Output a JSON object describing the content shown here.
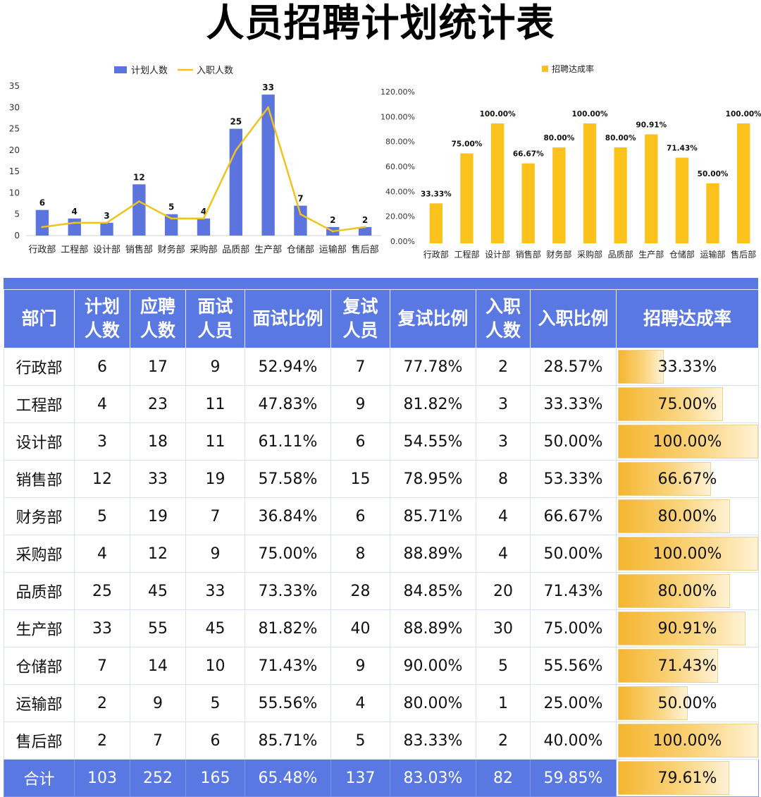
{
  "title": "人员招聘计划统计表",
  "colors": {
    "blue": "#5a78e2",
    "plan_bar": "#5b74de",
    "line": "#f0c31d",
    "rate_bar": "#fbc21c"
  },
  "chart_data": [
    {
      "type": "bar",
      "categories": [
        "行政部",
        "工程部",
        "设计部",
        "销售部",
        "财务部",
        "采购部",
        "品质部",
        "生产部",
        "仓储部",
        "运输部",
        "售后部"
      ],
      "series": [
        {
          "name": "计划人数",
          "type": "bar",
          "axis": "left",
          "values": [
            6,
            4,
            3,
            12,
            5,
            4,
            25,
            33,
            7,
            2,
            2
          ]
        },
        {
          "name": "入职人数",
          "type": "line",
          "axis": "left",
          "values": [
            2,
            3,
            3,
            8,
            4,
            4,
            20,
            30,
            5,
            1,
            2
          ]
        }
      ],
      "ylim": [
        0,
        35
      ],
      "yticks": [
        "0",
        "5",
        "10",
        "15",
        "20",
        "25",
        "30",
        "35"
      ],
      "y2lim": [
        0,
        1.2
      ],
      "y2ticks": [
        "0.00%",
        "20.00%",
        "40.00%",
        "60.00%",
        "80.00%",
        "100.00%",
        "120.00%"
      ],
      "data_labels": [
        "6",
        "4",
        "3",
        "12",
        "5",
        "4",
        "25",
        "33",
        "7",
        "2",
        "2"
      ],
      "legend": "top"
    },
    {
      "type": "bar",
      "categories": [
        "行政部",
        "工程部",
        "设计部",
        "销售部",
        "财务部",
        "采购部",
        "品质部",
        "生产部",
        "仓储部",
        "运输部",
        "售后部"
      ],
      "series": [
        {
          "name": "招聘达成率",
          "values": [
            0.3333,
            0.75,
            1.0,
            0.6667,
            0.8,
            1.0,
            0.8,
            0.9091,
            0.7143,
            0.5,
            1.0
          ]
        }
      ],
      "ylim": [
        0,
        1
      ],
      "data_labels": [
        "33.33%",
        "75.00%",
        "100.00%",
        "66.67%",
        "80.00%",
        "100.00%",
        "80.00%",
        "90.91%",
        "71.43%",
        "50.00%",
        "100.00%"
      ],
      "legend": "top"
    }
  ],
  "table": {
    "headers": [
      "部门",
      "计划人数",
      "应聘人数",
      "面试人员",
      "面试比例",
      "复试人员",
      "复试比例",
      "入职人数",
      "入职比例",
      "招聘达成率"
    ],
    "rows": [
      {
        "cells": [
          "行政部",
          "6",
          "17",
          "9",
          "52.94%",
          "7",
          "77.78%",
          "2",
          "28.57%",
          "33.33%"
        ],
        "rate": 0.3333
      },
      {
        "cells": [
          "工程部",
          "4",
          "23",
          "11",
          "47.83%",
          "9",
          "81.82%",
          "3",
          "33.33%",
          "75.00%"
        ],
        "rate": 0.75
      },
      {
        "cells": [
          "设计部",
          "3",
          "18",
          "11",
          "61.11%",
          "6",
          "54.55%",
          "3",
          "50.00%",
          "100.00%"
        ],
        "rate": 1.0
      },
      {
        "cells": [
          "销售部",
          "12",
          "33",
          "19",
          "57.58%",
          "15",
          "78.95%",
          "8",
          "53.33%",
          "66.67%"
        ],
        "rate": 0.6667
      },
      {
        "cells": [
          "财务部",
          "5",
          "19",
          "7",
          "36.84%",
          "6",
          "85.71%",
          "4",
          "66.67%",
          "80.00%"
        ],
        "rate": 0.8
      },
      {
        "cells": [
          "采购部",
          "4",
          "12",
          "9",
          "75.00%",
          "8",
          "88.89%",
          "4",
          "50.00%",
          "100.00%"
        ],
        "rate": 1.0
      },
      {
        "cells": [
          "品质部",
          "25",
          "45",
          "33",
          "73.33%",
          "28",
          "84.85%",
          "20",
          "71.43%",
          "80.00%"
        ],
        "rate": 0.8
      },
      {
        "cells": [
          "生产部",
          "33",
          "55",
          "45",
          "81.82%",
          "40",
          "88.89%",
          "30",
          "75.00%",
          "90.91%"
        ],
        "rate": 0.9091
      },
      {
        "cells": [
          "仓储部",
          "7",
          "14",
          "10",
          "71.43%",
          "9",
          "90.00%",
          "5",
          "55.56%",
          "71.43%"
        ],
        "rate": 0.7143
      },
      {
        "cells": [
          "运输部",
          "2",
          "9",
          "5",
          "55.56%",
          "4",
          "80.00%",
          "1",
          "25.00%",
          "50.00%"
        ],
        "rate": 0.5
      },
      {
        "cells": [
          "售后部",
          "2",
          "7",
          "6",
          "85.71%",
          "5",
          "83.33%",
          "2",
          "40.00%",
          "100.00%"
        ],
        "rate": 1.0
      }
    ],
    "total": {
      "cells": [
        "合计",
        "103",
        "252",
        "165",
        "65.48%",
        "137",
        "83.03%",
        "82",
        "59.85%",
        "79.61%"
      ],
      "rate": 0.7961
    }
  }
}
